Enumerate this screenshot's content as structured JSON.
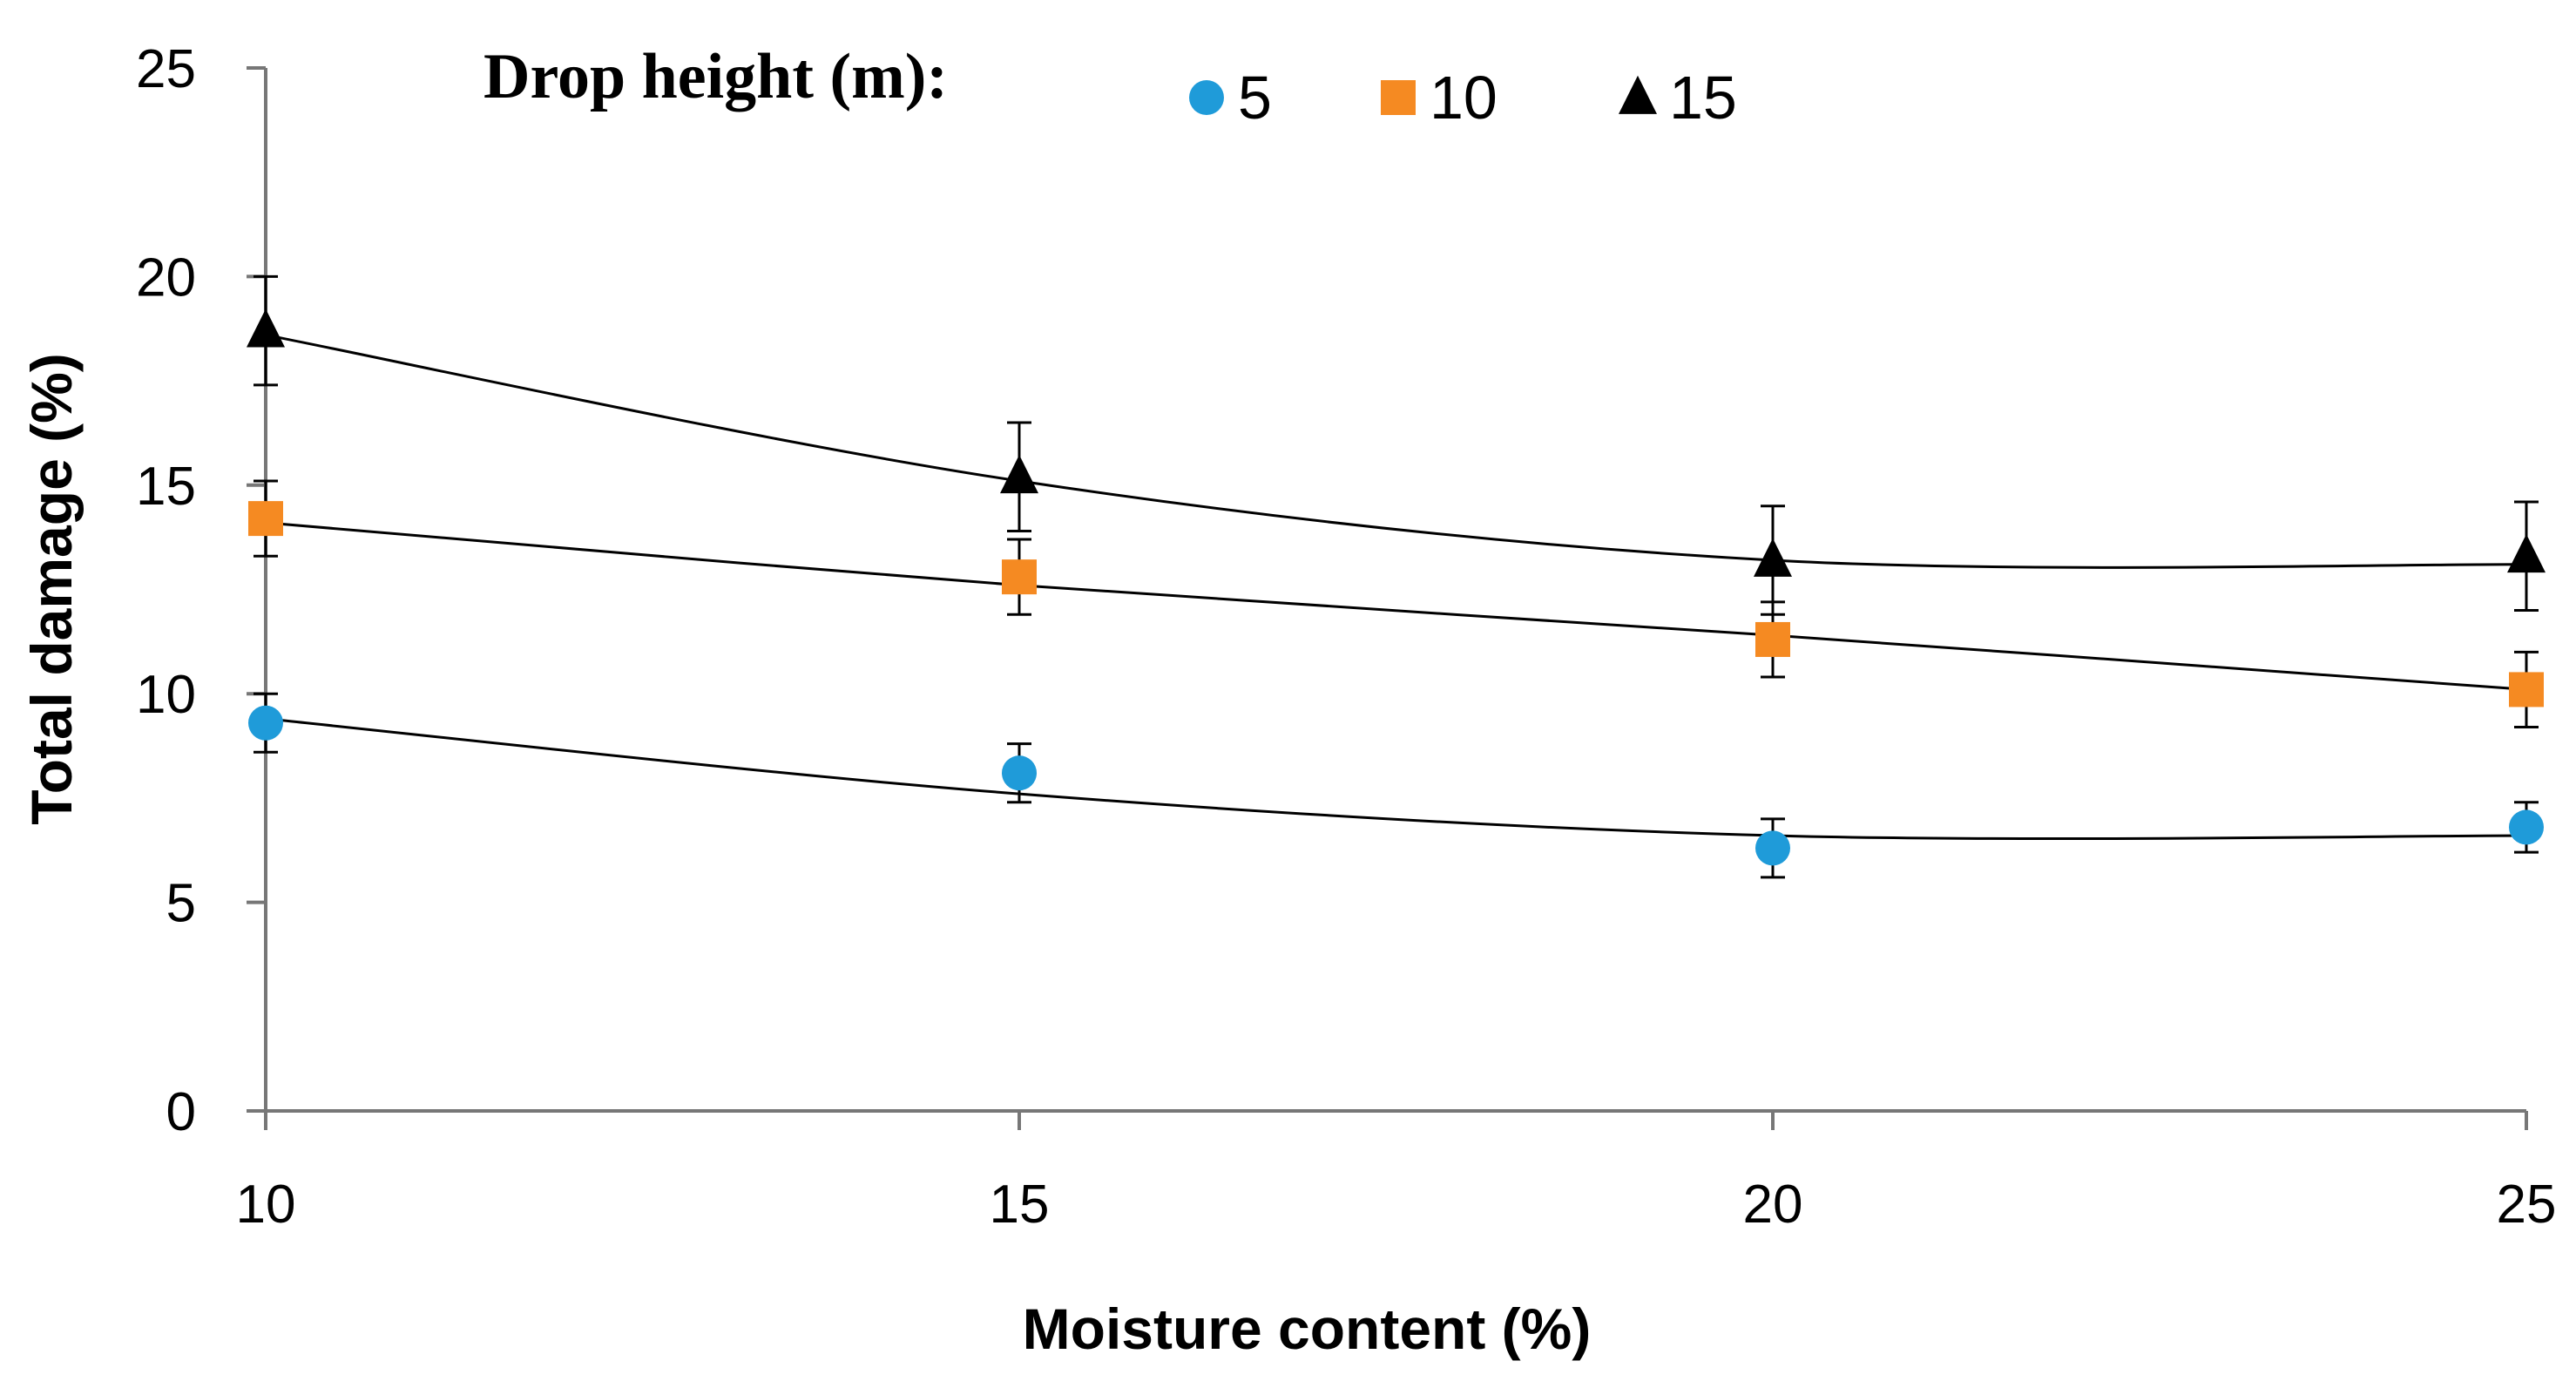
{
  "chart_data": {
    "type": "scatter",
    "title": "",
    "xlabel": "Moisture content (%)",
    "ylabel": "Total damage (%)",
    "xlim": [
      10,
      25
    ],
    "ylim": [
      0,
      25
    ],
    "x_ticks": [
      10,
      15,
      20,
      25
    ],
    "y_ticks": [
      0,
      5,
      10,
      15,
      20,
      25
    ],
    "grid": false,
    "legend": {
      "title": "Drop height (m):",
      "placement": "top"
    },
    "series": [
      {
        "name": "5",
        "marker": "circle",
        "color": "#1f9bd9",
        "x": [
          10,
          15,
          20,
          25
        ],
        "y": [
          9.3,
          8.1,
          6.3,
          6.8
        ],
        "error": [
          0.7,
          0.7,
          0.7,
          0.6
        ],
        "trend": [
          9.4,
          7.6,
          6.6,
          6.6
        ]
      },
      {
        "name": "10",
        "marker": "square",
        "color": "#f58a22",
        "x": [
          10,
          15,
          20,
          25
        ],
        "y": [
          14.2,
          12.8,
          11.3,
          10.1
        ],
        "error": [
          0.9,
          0.9,
          0.9,
          0.9
        ],
        "trend": [
          14.1,
          12.6,
          11.4,
          10.1
        ]
      },
      {
        "name": "15",
        "marker": "triangle",
        "color": "#000000",
        "x": [
          10,
          15,
          20,
          25
        ],
        "y": [
          18.7,
          15.2,
          13.2,
          13.3
        ],
        "error": [
          1.3,
          1.3,
          1.3,
          1.3
        ],
        "trend": [
          18.6,
          15.1,
          13.2,
          13.1
        ]
      }
    ]
  }
}
